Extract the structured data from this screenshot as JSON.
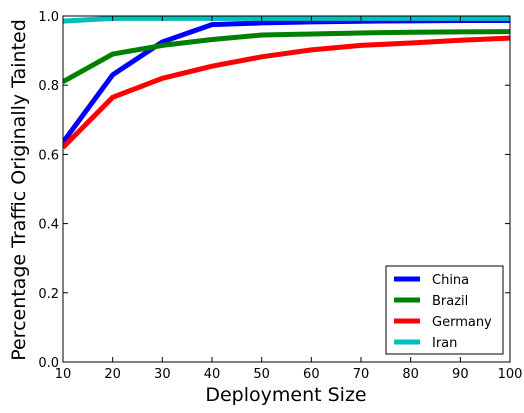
{
  "chart_data": {
    "type": "line",
    "xlabel": "Deployment Size",
    "ylabel": "Percentage Traffic Originally Tainted",
    "xlim": [
      10,
      100
    ],
    "ylim": [
      0.0,
      1.0
    ],
    "x_ticks": [
      "10",
      "20",
      "30",
      "40",
      "50",
      "60",
      "70",
      "80",
      "90",
      "100"
    ],
    "y_ticks": [
      "0.0",
      "0.2",
      "0.4",
      "0.6",
      "0.8",
      "1.0"
    ],
    "grid": false,
    "legend_position": "bottom-right",
    "x": [
      10,
      20,
      30,
      40,
      50,
      60,
      70,
      80,
      90,
      100
    ],
    "series": [
      {
        "name": "China",
        "color": "#0000ff",
        "values": [
          0.635,
          0.83,
          0.925,
          0.975,
          0.98,
          0.983,
          0.985,
          0.986,
          0.987,
          0.987
        ]
      },
      {
        "name": "Brazil",
        "color": "#008000",
        "values": [
          0.81,
          0.89,
          0.915,
          0.932,
          0.945,
          0.948,
          0.951,
          0.953,
          0.954,
          0.955
        ]
      },
      {
        "name": "Germany",
        "color": "#ff0000",
        "values": [
          0.62,
          0.765,
          0.82,
          0.855,
          0.882,
          0.902,
          0.915,
          0.922,
          0.93,
          0.936
        ]
      },
      {
        "name": "Iran",
        "color": "#00bfbf",
        "values": [
          0.985,
          0.993,
          0.993,
          0.993,
          0.993,
          0.993,
          0.993,
          0.993,
          0.993,
          0.993
        ]
      }
    ]
  }
}
